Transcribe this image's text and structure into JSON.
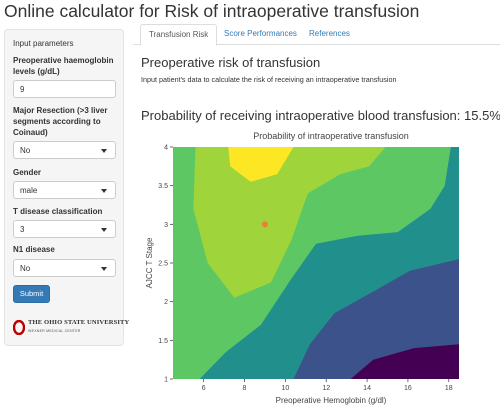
{
  "app": {
    "title": "Online calculator for Risk of intraoperative transfusion"
  },
  "sidebar": {
    "heading": "Input parameters",
    "hgb": {
      "label_line1": "Preoperative haemoglobin",
      "label_line2": "levels (g/dL)",
      "value": "9"
    },
    "resection": {
      "label_line1": "Major Resection (>3 liver",
      "label_line2": "segments according to",
      "label_line3": "Coinaud)",
      "value": "No"
    },
    "gender": {
      "label": "Gender",
      "value": "male"
    },
    "t_class": {
      "label": "T disease classification",
      "value": "3"
    },
    "n1": {
      "label": "N1 disease",
      "value": "No"
    },
    "submit_label": "Submit",
    "logo": {
      "name": "THE OHIO STATE UNIVERSITY",
      "sub": "WEXNER MEDICAL CENTER"
    }
  },
  "tabs": [
    "Transfusion Risk",
    "Score Performances",
    "References"
  ],
  "main": {
    "heading": "Preoperative risk of transfusion",
    "description": "Input patient's data to calculate the risk of receiving an intraoperative transfusion",
    "result": "Probability of receiving intraoperative blood transfusion: 15.5%"
  },
  "colors": {
    "primary": "#337ab7",
    "contour_levels": [
      "#440154",
      "#3b528b",
      "#21908c",
      "#5dc863",
      "#9fd53a",
      "#fde725"
    ],
    "patient_point": "#f07c3a"
  },
  "chart_data": {
    "type": "contour",
    "title": "Probability of intraoperative transfusion",
    "xlabel": "Preoperative Hemoglobin (g/dl)",
    "ylabel": "AJCC T Stage",
    "xlim": [
      4.5,
      18.5
    ],
    "ylim": [
      1,
      4
    ],
    "x_ticks": [
      "6",
      "8",
      "10",
      "12",
      "14",
      "16",
      "18"
    ],
    "y_ticks": [
      "1",
      "1.5",
      "2",
      "2.5",
      "3",
      "3.5",
      "4"
    ],
    "patient_point": {
      "x": 9,
      "y": 3
    },
    "contours": [
      {
        "level": 0,
        "points": [
          [
            4.5,
            1
          ],
          [
            18.5,
            1
          ],
          [
            18.5,
            4
          ],
          [
            4.5,
            4
          ]
        ]
      },
      {
        "level": 1,
        "points": [
          [
            4.5,
            1
          ],
          [
            13.2,
            1
          ],
          [
            14.3,
            1.25
          ],
          [
            16.3,
            1.4
          ],
          [
            18.5,
            1.45
          ],
          [
            18.5,
            4
          ],
          [
            4.5,
            4
          ]
        ]
      },
      {
        "level": 2,
        "points": [
          [
            4.5,
            1
          ],
          [
            10.4,
            1
          ],
          [
            11.2,
            1.45
          ],
          [
            12.4,
            1.85
          ],
          [
            14.1,
            2.1
          ],
          [
            16.1,
            2.4
          ],
          [
            18.5,
            2.55
          ],
          [
            18.5,
            4
          ],
          [
            4.5,
            4
          ]
        ]
      },
      {
        "level": 3,
        "points": [
          [
            4.5,
            1
          ],
          [
            5.8,
            1
          ],
          [
            7.1,
            1.35
          ],
          [
            8.8,
            1.7
          ],
          [
            10.3,
            2.3
          ],
          [
            11.5,
            2.75
          ],
          [
            13.5,
            2.85
          ],
          [
            15.5,
            2.9
          ],
          [
            17.1,
            3.2
          ],
          [
            17.8,
            3.5
          ],
          [
            18.1,
            4
          ],
          [
            4.5,
            4
          ]
        ]
      },
      {
        "level": 4,
        "points": [
          [
            5.6,
            4
          ],
          [
            5.5,
            3.2
          ],
          [
            6.2,
            2.5
          ],
          [
            7.5,
            2.05
          ],
          [
            9.3,
            2.25
          ],
          [
            10.3,
            2.8
          ],
          [
            11.1,
            3.4
          ],
          [
            12.7,
            3.65
          ],
          [
            14.1,
            3.75
          ],
          [
            14.9,
            4
          ]
        ]
      },
      {
        "level": 5,
        "points": [
          [
            7.2,
            4
          ],
          [
            7.3,
            3.75
          ],
          [
            8.3,
            3.55
          ],
          [
            9.6,
            3.65
          ],
          [
            10.4,
            4
          ]
        ]
      }
    ]
  }
}
